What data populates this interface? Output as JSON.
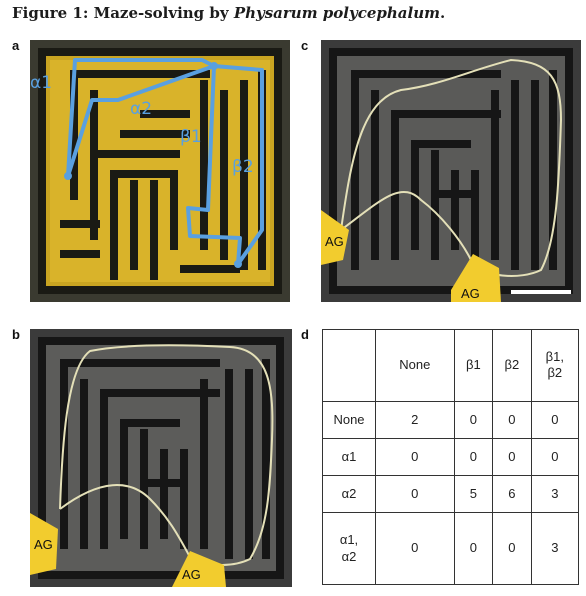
{
  "figure": {
    "title_prefix": "Figure 1: Maze-solving by ",
    "title_italic": "Physarum polycephalum",
    "title_suffix": "."
  },
  "panels": {
    "a": {
      "label": "a",
      "paths": [
        "α1",
        "α2",
        "β1",
        "β2"
      ]
    },
    "b": {
      "label": "b",
      "ag_labels": [
        "AG",
        "AG"
      ]
    },
    "c": {
      "label": "c",
      "ag_labels": [
        "AG",
        "AG"
      ]
    },
    "d": {
      "label": "d"
    }
  },
  "table": {
    "corner": "",
    "col_headers": [
      "None",
      "β1",
      "β2",
      "β1,\nβ2"
    ],
    "rows": [
      {
        "header": "None",
        "values": [
          "2",
          "0",
          "0",
          "0"
        ]
      },
      {
        "header": "α1",
        "values": [
          "0",
          "0",
          "0",
          "0"
        ]
      },
      {
        "header": "α2",
        "values": [
          "0",
          "5",
          "6",
          "3"
        ]
      },
      {
        "header": "α1,\nα2",
        "values": [
          "0",
          "0",
          "0",
          "3"
        ]
      }
    ]
  },
  "colors": {
    "path_blue": "#5aa0e0",
    "agar_yellow": "#f2cc2e",
    "maze_dark": "#2e2e2e",
    "maze_wall": "#141414"
  }
}
